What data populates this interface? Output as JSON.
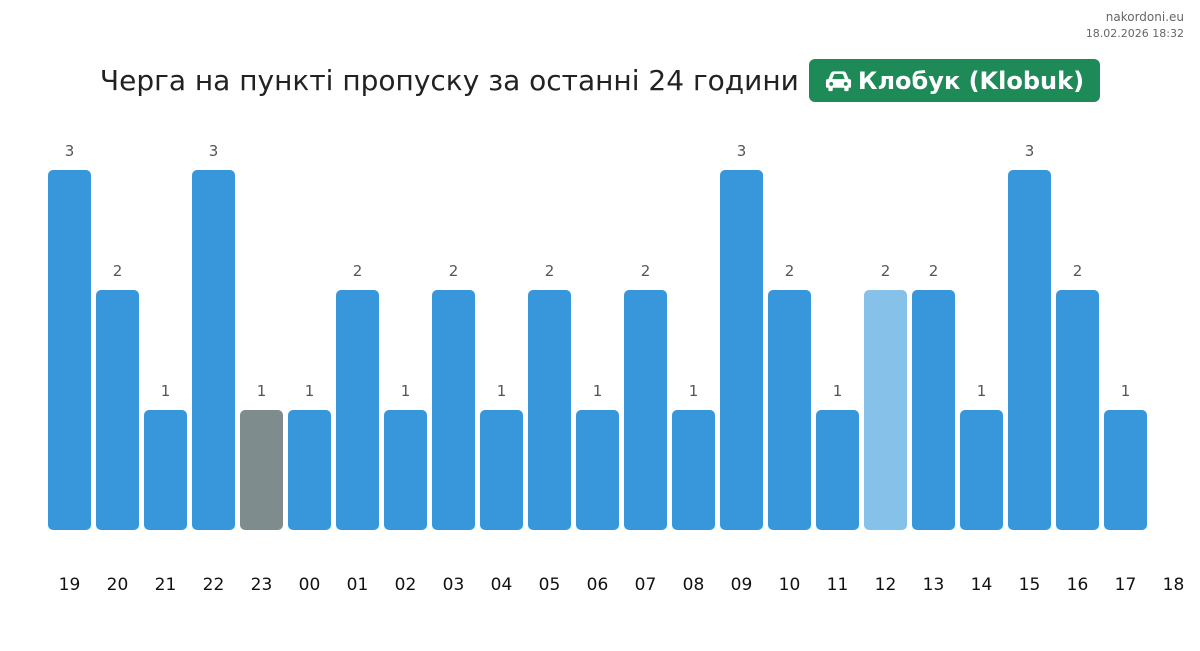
{
  "header": {
    "site": "nakordoni.eu",
    "timestamp": "18.02.2026 18:32",
    "title": "Черга на пункті пропуску за останні 24 години",
    "checkpoint": "Клобук (Klobuk)",
    "checkpoint_icon": "car-icon"
  },
  "colors": {
    "bar": "#3897db",
    "bar_unknown": "#7f8c8d",
    "bar_current": "#85c1e9",
    "badge": "#1e8a57"
  },
  "chart_data": {
    "type": "bar",
    "title": "Черга на пункті пропуску за останні 24 години",
    "categories": [
      "19",
      "20",
      "21",
      "22",
      "23",
      "00",
      "01",
      "02",
      "03",
      "04",
      "05",
      "06",
      "07",
      "08",
      "09",
      "10",
      "11",
      "12",
      "13",
      "14",
      "15",
      "16",
      "17"
    ],
    "extra_tick": "18",
    "values": [
      3,
      2,
      1,
      3,
      1,
      1,
      2,
      1,
      2,
      1,
      2,
      1,
      2,
      1,
      3,
      2,
      1,
      2,
      2,
      1,
      3,
      2,
      1
    ],
    "bar_styles": [
      "normal",
      "normal",
      "normal",
      "normal",
      "unknown",
      "normal",
      "normal",
      "normal",
      "normal",
      "normal",
      "normal",
      "normal",
      "normal",
      "normal",
      "normal",
      "normal",
      "normal",
      "current",
      "normal",
      "normal",
      "normal",
      "normal",
      "normal"
    ],
    "ylim": [
      0,
      3
    ],
    "xlabel": "",
    "ylabel": "",
    "grid": false,
    "legend": "none"
  }
}
